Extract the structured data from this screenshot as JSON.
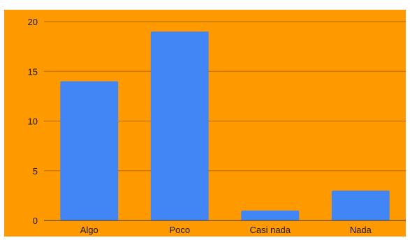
{
  "chart_data": {
    "type": "bar",
    "title": "",
    "xlabel": "",
    "ylabel": "",
    "categories": [
      "Algo",
      "Poco",
      "Casi nada",
      "Nada"
    ],
    "values": [
      14,
      19,
      1,
      3
    ],
    "ylim": [
      0,
      20
    ],
    "yticks": [
      0,
      5,
      10,
      15,
      20
    ],
    "ytick_labels": [
      "0",
      "5",
      "10",
      "15",
      "20"
    ],
    "grid": true,
    "legend": "none"
  },
  "colors": {
    "background": "#ff9900",
    "bar": "#4285f4",
    "gridline": "#b26b00",
    "baseline": "#333333",
    "text": "#1a1a1a"
  }
}
